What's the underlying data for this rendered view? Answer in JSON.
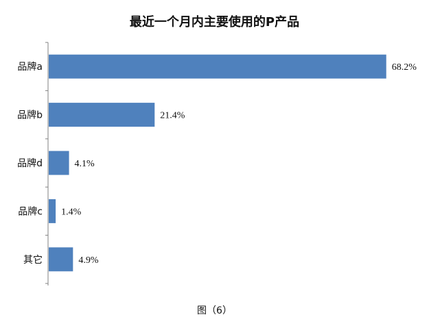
{
  "figure": {
    "caption": "图（6）"
  },
  "chart_data": {
    "type": "bar",
    "orientation": "horizontal",
    "title": "最近一个月内主要使用的P产品",
    "categories": [
      "品牌a",
      "品牌b",
      "品牌d",
      "品牌c",
      "其它"
    ],
    "values": [
      68.2,
      21.4,
      4.1,
      1.4,
      4.9
    ],
    "value_labels": [
      "68.2%",
      "21.4%",
      "4.1%",
      "1.4%",
      "4.9%"
    ],
    "xlim": [
      0,
      70
    ],
    "grid": false,
    "legend": "none",
    "bar_color": "#4f81bd",
    "axis_color": "#808080"
  }
}
